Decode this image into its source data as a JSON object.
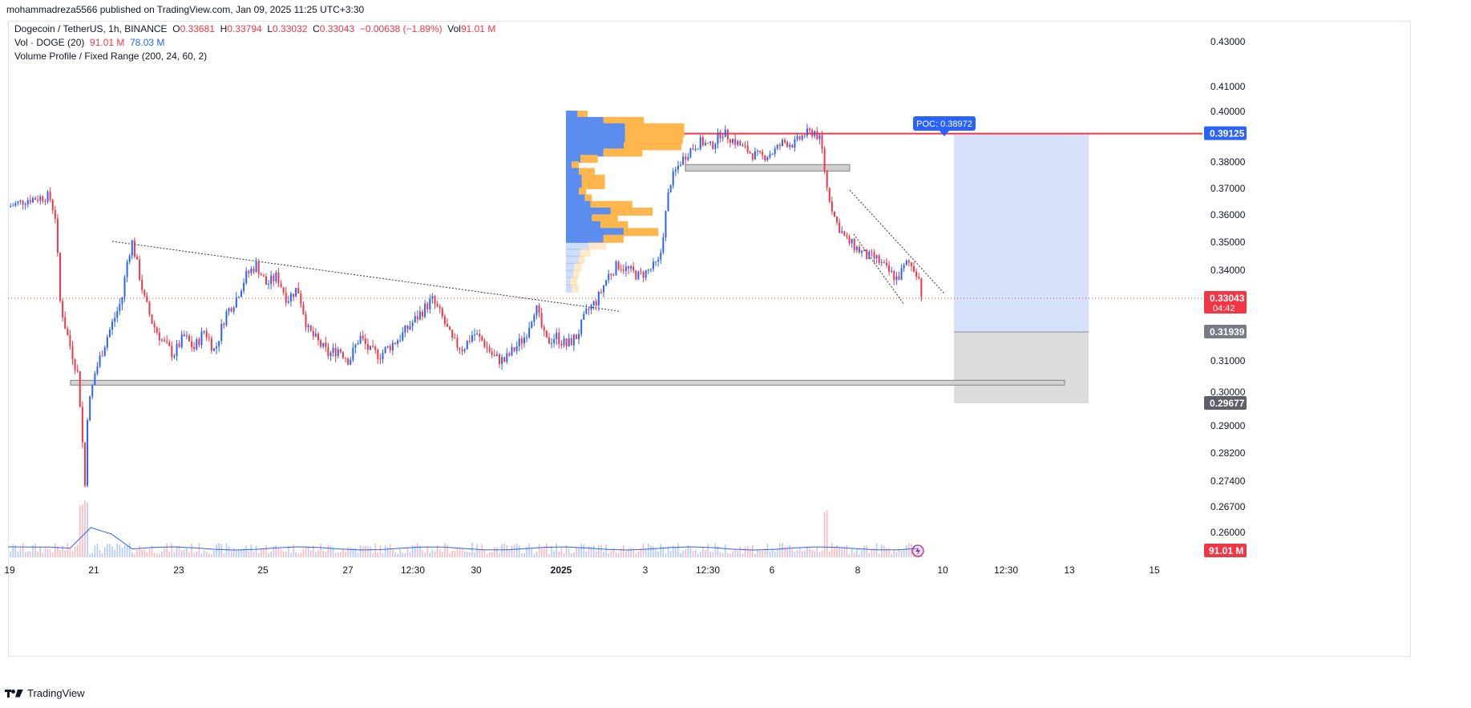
{
  "header": {
    "publisher": "mohammadreza5566 published on TradingView.com, Jan 09, 2025 11:25 UTC+3:30"
  },
  "legend": {
    "symbol": "Dogecoin / TetherUS, 1h, BINANCE",
    "o_label": "O",
    "o_value": "0.33681",
    "h_label": "H",
    "h_value": "0.33794",
    "l_label": "L",
    "l_value": "0.33032",
    "c_label": "C",
    "c_value": "0.33043",
    "change": "−0.00638 (−1.89%)",
    "vol_label": "Vol",
    "vol_value": "91.01 M",
    "vol_indicator": "Vol · DOGE (20)",
    "vol_indicator_v1": "91.01 M",
    "vol_indicator_v2": "78.03 M",
    "vp_indicator": "Volume Profile / Fixed Range (200, 24, 60, 2)"
  },
  "footer": {
    "brand": "TradingView"
  },
  "colors": {
    "up": "#2962ff",
    "down": "#f23645",
    "vp_up": "#5b8def",
    "vp_down": "#ffb74d",
    "resistance": "#f23645",
    "target_zone": "#d1dffb",
    "stop_zone": "#dcdcdc"
  },
  "chart_data": {
    "type": "candlestick",
    "symbol": "DOGEUSDT",
    "timeframe": "1h",
    "y_axis_ticks": [
      "0.43000",
      "0.41000",
      "0.40000",
      "0.38000",
      "0.37000",
      "0.36000",
      "0.35000",
      "0.34000",
      "0.31000",
      "0.30000",
      "0.29000",
      "0.28200",
      "0.27400",
      "0.26700",
      "0.26000"
    ],
    "x_axis_ticks": [
      "19",
      "21",
      "23",
      "25",
      "27",
      "12:30",
      "30",
      "2025",
      "3",
      "12:30",
      "6",
      "8",
      "10",
      "12:30",
      "13",
      "15"
    ],
    "price_labels": [
      {
        "text": "0.39125",
        "value": 0.39125,
        "color": "#2962ff"
      },
      {
        "text": "0.33043",
        "value": 0.33043,
        "color": "#f23645",
        "sub": "04:42"
      },
      {
        "text": "0.31939",
        "value": 0.31939,
        "color": "#787b86"
      },
      {
        "text": "0.29677",
        "value": 0.29677,
        "color": "#5d606b"
      }
    ],
    "volume_label": "91.01 M",
    "poc_label": "POC: 0.38972",
    "poc_value": 0.38972,
    "resistance_level": 0.39125,
    "support_zone": [
      0.302,
      0.303
    ],
    "consolidation_zone": [
      0.3768,
      0.3778
    ],
    "target_box": {
      "top": 0.39125,
      "bottom": 0.31939
    },
    "stop_box": {
      "top": 0.31939,
      "bottom": 0.29677
    },
    "last_price": 0.33043,
    "price_path": [
      [
        0,
        0.363
      ],
      [
        1,
        0.366
      ],
      [
        2,
        0.367
      ],
      [
        2.3,
        0.359
      ],
      [
        2.5,
        0.33
      ],
      [
        2.8,
        0.32
      ],
      [
        3.2,
        0.31
      ],
      [
        3.4,
        0.305
      ],
      [
        3.6,
        0.285
      ],
      [
        3.7,
        0.268
      ],
      [
        3.8,
        0.292
      ],
      [
        4.2,
        0.306
      ],
      [
        4.8,
        0.318
      ],
      [
        5.5,
        0.33
      ],
      [
        5.8,
        0.345
      ],
      [
        6,
        0.35
      ],
      [
        6.3,
        0.34
      ],
      [
        6.6,
        0.33
      ],
      [
        7,
        0.322
      ],
      [
        7.5,
        0.316
      ],
      [
        8,
        0.312
      ],
      [
        8.5,
        0.318
      ],
      [
        9,
        0.314
      ],
      [
        9.5,
        0.32
      ],
      [
        10,
        0.313
      ],
      [
        10.5,
        0.325
      ],
      [
        11,
        0.33
      ],
      [
        11.5,
        0.338
      ],
      [
        12,
        0.342
      ],
      [
        12.5,
        0.335
      ],
      [
        13,
        0.338
      ],
      [
        13.5,
        0.33
      ],
      [
        14,
        0.334
      ],
      [
        14.5,
        0.32
      ],
      [
        15,
        0.316
      ],
      [
        15.5,
        0.312
      ],
      [
        16,
        0.314
      ],
      [
        16.5,
        0.31
      ],
      [
        17,
        0.318
      ],
      [
        17.5,
        0.313
      ],
      [
        18,
        0.312
      ],
      [
        18.5,
        0.315
      ],
      [
        19,
        0.318
      ],
      [
        19.5,
        0.322
      ],
      [
        20,
        0.326
      ],
      [
        20.5,
        0.33
      ],
      [
        21,
        0.324
      ],
      [
        21.5,
        0.316
      ],
      [
        22,
        0.314
      ],
      [
        22.5,
        0.319
      ],
      [
        23,
        0.316
      ],
      [
        23.5,
        0.311
      ],
      [
        24,
        0.31
      ],
      [
        24.5,
        0.314
      ],
      [
        25,
        0.318
      ],
      [
        25.5,
        0.328
      ],
      [
        26,
        0.316
      ],
      [
        26.5,
        0.318
      ],
      [
        27,
        0.315
      ],
      [
        27.5,
        0.318
      ],
      [
        28,
        0.326
      ],
      [
        28.5,
        0.33
      ],
      [
        29,
        0.338
      ],
      [
        29.5,
        0.342
      ],
      [
        30,
        0.34
      ],
      [
        30.5,
        0.338
      ],
      [
        31,
        0.34
      ],
      [
        31.5,
        0.343
      ],
      [
        32,
        0.372
      ],
      [
        32.5,
        0.38
      ],
      [
        33,
        0.385
      ],
      [
        33.5,
        0.388
      ],
      [
        34,
        0.386
      ],
      [
        34.5,
        0.392
      ],
      [
        35,
        0.389
      ],
      [
        35.5,
        0.386
      ],
      [
        36,
        0.383
      ],
      [
        36.5,
        0.382
      ],
      [
        37,
        0.384
      ],
      [
        37.5,
        0.388
      ],
      [
        38,
        0.387
      ],
      [
        38.5,
        0.391
      ],
      [
        39,
        0.392
      ],
      [
        39.3,
        0.388
      ],
      [
        39.6,
        0.37
      ],
      [
        40,
        0.358
      ],
      [
        40.5,
        0.351
      ],
      [
        41,
        0.348
      ],
      [
        41.5,
        0.345
      ],
      [
        42,
        0.344
      ],
      [
        42.5,
        0.34
      ],
      [
        43,
        0.337
      ],
      [
        43.5,
        0.343
      ],
      [
        44,
        0.339
      ],
      [
        44.2,
        0.33043
      ]
    ],
    "volume_profile": {
      "price_range": [
        0.312,
        0.399
      ],
      "rows": [
        {
          "price": 0.3985,
          "up": 8,
          "down": 7
        },
        {
          "price": 0.396,
          "up": 26,
          "down": 28
        },
        {
          "price": 0.3935,
          "up": 41,
          "down": 41
        },
        {
          "price": 0.391,
          "up": 41,
          "down": 41
        },
        {
          "price": 0.3885,
          "up": 41,
          "down": 40
        },
        {
          "price": 0.386,
          "up": 40,
          "down": 40
        },
        {
          "price": 0.3835,
          "up": 26,
          "down": 27
        },
        {
          "price": 0.381,
          "up": 10,
          "down": 12
        },
        {
          "price": 0.3785,
          "up": 4,
          "down": 5
        },
        {
          "price": 0.376,
          "up": 9,
          "down": 11
        },
        {
          "price": 0.3735,
          "up": 11,
          "down": 16
        },
        {
          "price": 0.371,
          "up": 11,
          "down": 16
        },
        {
          "price": 0.3685,
          "up": 9,
          "down": 5
        },
        {
          "price": 0.366,
          "up": 13,
          "down": 5
        },
        {
          "price": 0.3635,
          "up": 17,
          "down": 29
        },
        {
          "price": 0.361,
          "up": 31,
          "down": 29
        },
        {
          "price": 0.3585,
          "up": 18,
          "down": 18
        },
        {
          "price": 0.356,
          "up": 24,
          "down": 19
        },
        {
          "price": 0.3535,
          "up": 40,
          "down": 24
        },
        {
          "price": 0.351,
          "up": 26,
          "down": 14
        },
        {
          "price": 0.3485,
          "up": 16,
          "down": 12
        },
        {
          "price": 0.346,
          "up": 10,
          "down": 7
        },
        {
          "price": 0.3435,
          "up": 9,
          "down": 4
        },
        {
          "price": 0.341,
          "up": 6,
          "down": 5
        },
        {
          "price": 0.3385,
          "up": 5,
          "down": 4
        },
        {
          "price": 0.336,
          "up": 3,
          "down": 5
        },
        {
          "price": 0.3335,
          "up": 4,
          "down": 5
        }
      ]
    }
  }
}
